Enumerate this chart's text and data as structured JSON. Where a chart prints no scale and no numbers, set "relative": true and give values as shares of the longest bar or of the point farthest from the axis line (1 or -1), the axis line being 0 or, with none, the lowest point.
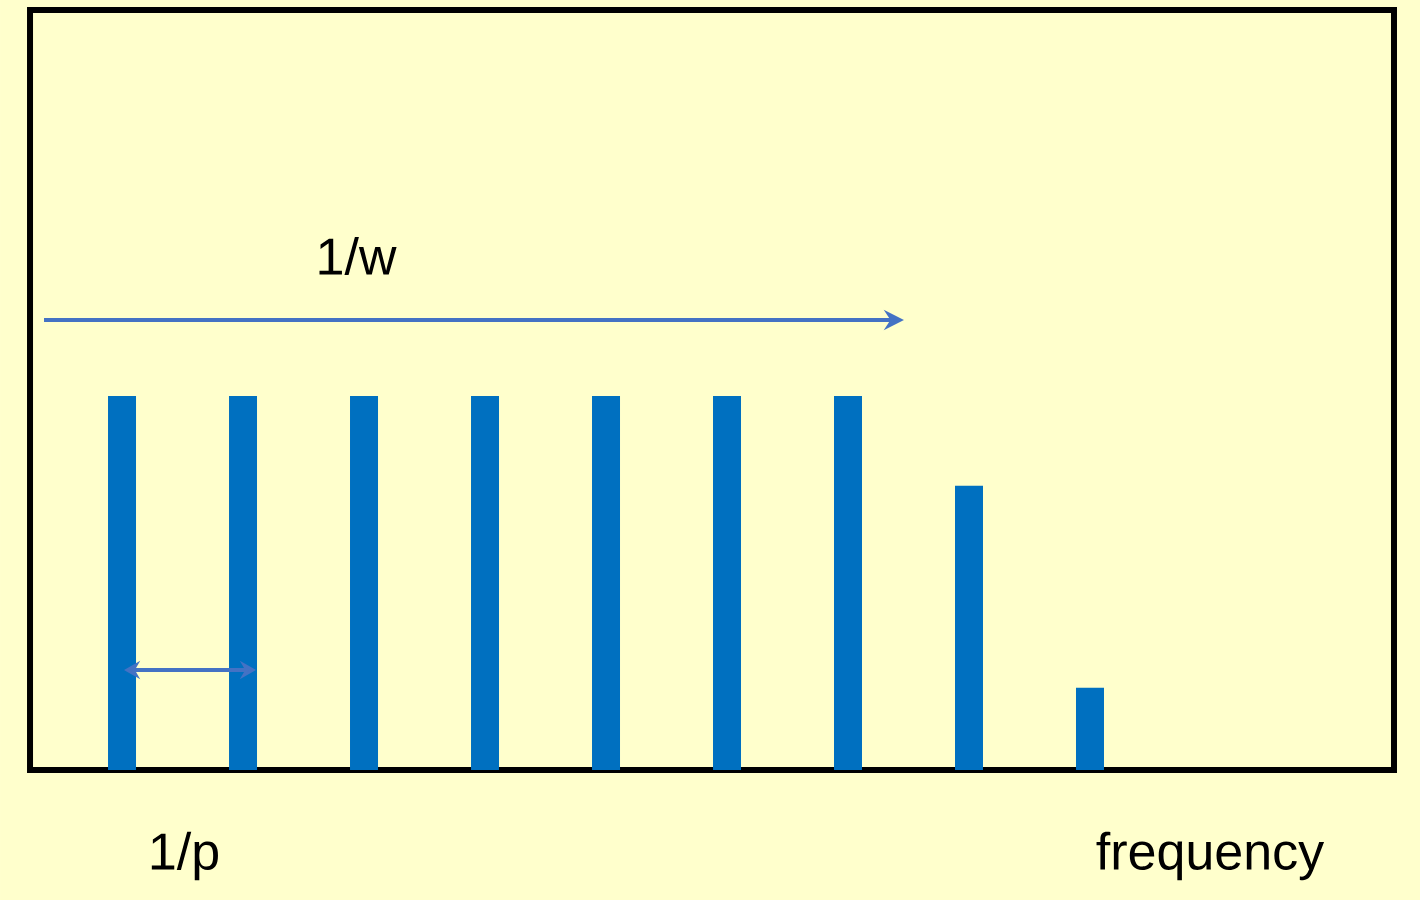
{
  "chart_data": {
    "type": "bar",
    "relative": true,
    "categories": [
      null,
      null,
      null,
      null,
      null,
      null,
      null,
      null,
      null
    ],
    "values": [
      1,
      1,
      1,
      1,
      1,
      1,
      1,
      0.76,
      0.22
    ],
    "color": "#0070c0",
    "xlabel": "frequency",
    "annotations": [
      "1/w",
      "1/p"
    ]
  }
}
